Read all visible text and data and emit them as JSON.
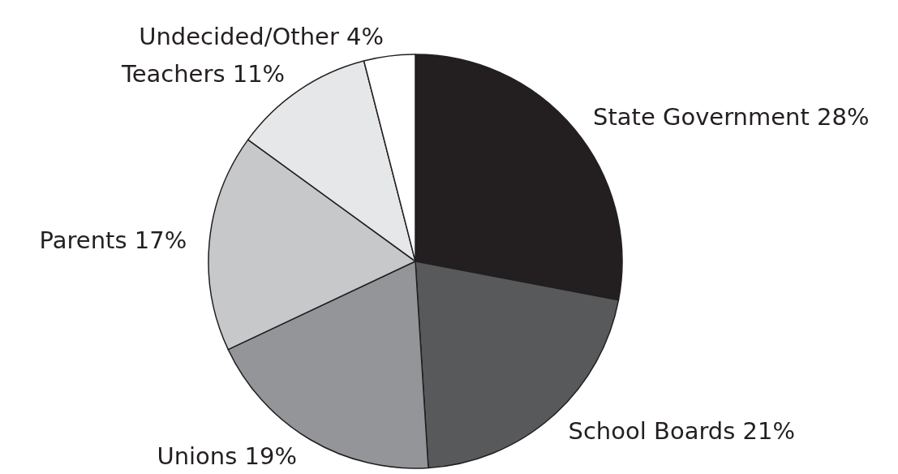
{
  "chart_data": {
    "type": "pie",
    "categories": [
      "State Government",
      "School Boards",
      "Unions",
      "Parents",
      "Teachers",
      "Undecided/Other"
    ],
    "values": [
      28,
      21,
      19,
      17,
      11,
      4
    ],
    "colors": [
      "#231f20",
      "#58595b",
      "#939598",
      "#c7c8ca",
      "#e6e7e8",
      "#ffffff"
    ],
    "value_labels": [
      "28%",
      "21%",
      "19%",
      "17%",
      "11%",
      "4%"
    ]
  }
}
